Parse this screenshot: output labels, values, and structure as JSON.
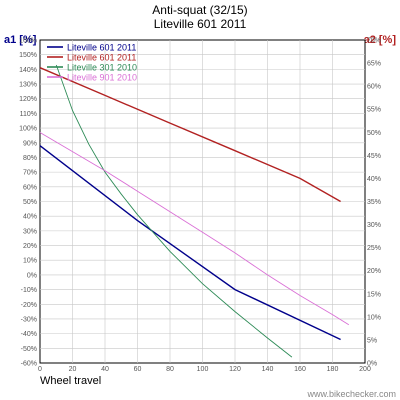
{
  "chart_data": {
    "type": "line",
    "title": "Anti-squat (32/15)",
    "subtitle": "Liteville 601 2011",
    "xlabel": "Wheel travel",
    "ylabel_left": "a1 [%]",
    "ylabel_right": "a2 [%]",
    "xlim": [
      0,
      200
    ],
    "ylim_left": [
      -60,
      160
    ],
    "ylim_right": [
      0,
      70
    ],
    "x_ticks": [
      0,
      20,
      40,
      60,
      80,
      100,
      120,
      140,
      160,
      180,
      200
    ],
    "y_ticks_left": [
      -60,
      -50,
      -40,
      -30,
      -20,
      -10,
      0,
      10,
      20,
      30,
      40,
      50,
      60,
      70,
      80,
      90,
      100,
      110,
      120,
      130,
      140,
      150,
      160
    ],
    "y_ticks_right": [
      0,
      5,
      10,
      15,
      20,
      25,
      30,
      35,
      40,
      45,
      50,
      55,
      60,
      65,
      70
    ],
    "grid": true,
    "legend_placement": "top-left",
    "watermark": "www.bikechecker.com",
    "series": [
      {
        "name": "Liteville 601 2011",
        "axis": "left",
        "color": "#00008b",
        "x": [
          0,
          60,
          120,
          185
        ],
        "y": [
          88,
          37,
          -10,
          -44
        ]
      },
      {
        "name": "Liteville 601 2011",
        "axis": "right",
        "color": "#b22222",
        "x": [
          0,
          40,
          80,
          120,
          160,
          185
        ],
        "y": [
          64,
          58,
          52,
          46,
          40,
          35
        ]
      },
      {
        "name": "Liteville 301 2010",
        "axis": "left",
        "color": "#2e8b57",
        "x": [
          10,
          20,
          30,
          40,
          50,
          60,
          80,
          100,
          120,
          140,
          155
        ],
        "y": [
          143,
          112,
          89,
          70,
          55,
          41,
          16,
          -6,
          -25,
          -43,
          -56
        ]
      },
      {
        "name": "Liteville 901 2010",
        "axis": "left",
        "color": "#da70d6",
        "x": [
          0,
          20,
          40,
          60,
          80,
          100,
          120,
          140,
          160,
          180,
          190
        ],
        "y": [
          97,
          84,
          71,
          57,
          43,
          29,
          15,
          0,
          -14,
          -27,
          -34
        ]
      }
    ]
  }
}
